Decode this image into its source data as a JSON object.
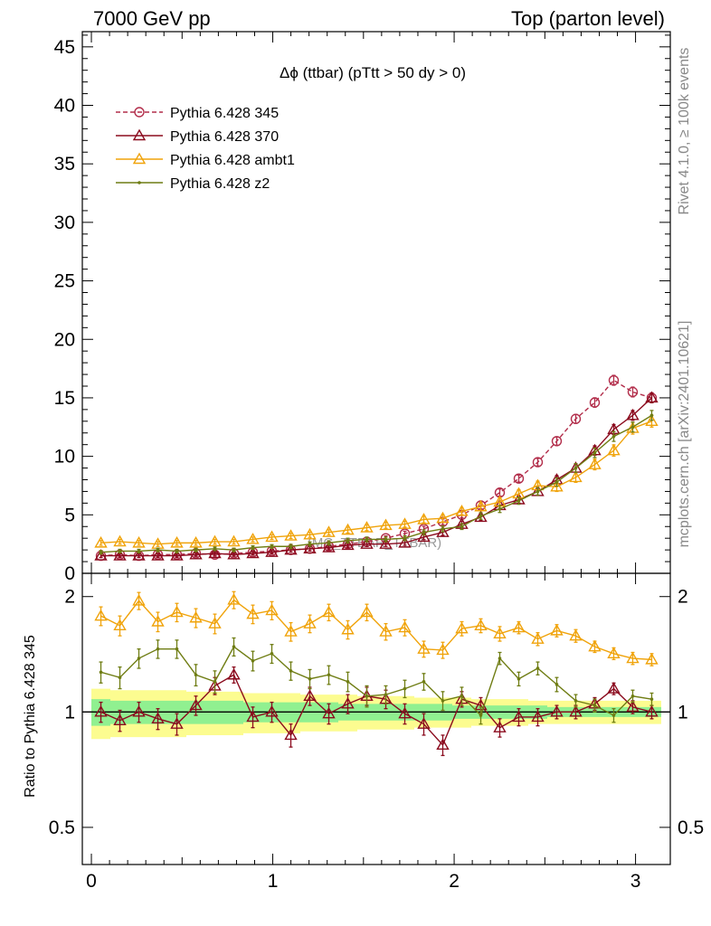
{
  "header": {
    "left": "7000 GeV pp",
    "right": "Top (parton level)"
  },
  "side": {
    "rivet": "Rivet 4.1.0, ≥ 100k events",
    "mcplots": "mcplots.cern.ch [arXiv:2401.10621]"
  },
  "watermark": "(MC_TTBAR_TTBAR)",
  "colors": {
    "p345": "#b22d4a",
    "p370": "#8b0b1e",
    "ambt1": "#f0a30a",
    "z2": "#6f7d13",
    "band_inner": "#90f090",
    "band_outer": "#fcfc90"
  },
  "chart_data": [
    {
      "type": "line",
      "title": "Δϕ (ttbar) (pTtt > 50 dy > 0)",
      "xlabel": "",
      "ylabel": "",
      "xlim": [
        -0.05,
        3.1916
      ],
      "ylim": [
        0,
        46.3
      ],
      "yticks": [
        "0",
        "5",
        "10",
        "15",
        "20",
        "25",
        "30",
        "35",
        "40",
        "45"
      ],
      "ytick_values": [
        0,
        5,
        10,
        15,
        20,
        25,
        30,
        35,
        40,
        45
      ],
      "x": [
        0.0524,
        0.1571,
        0.2618,
        0.3665,
        0.4712,
        0.576,
        0.6807,
        0.7854,
        0.8901,
        0.9948,
        1.0996,
        1.2043,
        1.309,
        1.4137,
        1.5184,
        1.6232,
        1.7279,
        1.8326,
        1.9373,
        2.042,
        2.1468,
        2.2515,
        2.3562,
        2.4609,
        2.5656,
        2.6704,
        2.7751,
        2.8798,
        2.9845,
        3.0892
      ],
      "series": [
        {
          "name": "Pythia 6.428 345",
          "key": "p345",
          "marker": "circle",
          "dashed": true,
          "values": [
            1.5,
            1.6,
            1.5,
            1.6,
            1.6,
            1.7,
            1.6,
            1.7,
            1.8,
            1.9,
            2.0,
            2.1,
            2.3,
            2.5,
            2.7,
            3.0,
            3.4,
            3.8,
            4.4,
            5.0,
            5.8,
            6.9,
            8.1,
            9.5,
            11.3,
            13.2,
            14.6,
            16.5,
            15.5,
            15.0
          ],
          "errors": [
            0.15,
            0.15,
            0.15,
            0.15,
            0.15,
            0.15,
            0.15,
            0.15,
            0.15,
            0.15,
            0.18,
            0.18,
            0.18,
            0.2,
            0.2,
            0.2,
            0.2,
            0.22,
            0.25,
            0.25,
            0.28,
            0.3,
            0.3,
            0.32,
            0.35,
            0.38,
            0.4,
            0.42,
            0.42,
            0.42
          ]
        },
        {
          "name": "Pythia 6.428 370",
          "key": "p370",
          "marker": "triangle",
          "dashed": false,
          "values": [
            1.5,
            1.5,
            1.5,
            1.5,
            1.5,
            1.6,
            1.7,
            1.6,
            1.7,
            1.8,
            2.0,
            2.1,
            2.2,
            2.4,
            2.5,
            2.5,
            2.6,
            3.1,
            3.5,
            4.2,
            4.8,
            5.8,
            6.3,
            7.0,
            8.0,
            9.0,
            10.5,
            12.3,
            13.5,
            15.0
          ],
          "errors": [
            0.15,
            0.15,
            0.15,
            0.15,
            0.15,
            0.15,
            0.15,
            0.15,
            0.15,
            0.15,
            0.18,
            0.18,
            0.18,
            0.2,
            0.2,
            0.2,
            0.2,
            0.22,
            0.25,
            0.25,
            0.28,
            0.3,
            0.3,
            0.32,
            0.35,
            0.38,
            0.4,
            0.42,
            0.42,
            0.42
          ]
        },
        {
          "name": "Pythia 6.428 ambt1",
          "key": "ambt1",
          "marker": "triangle",
          "dashed": false,
          "values": [
            2.6,
            2.7,
            2.6,
            2.5,
            2.6,
            2.6,
            2.7,
            2.7,
            2.9,
            3.1,
            3.2,
            3.3,
            3.5,
            3.7,
            3.9,
            4.1,
            4.2,
            4.6,
            4.7,
            5.3,
            5.7,
            6.1,
            6.8,
            7.5,
            7.4,
            8.2,
            9.3,
            10.5,
            12.4,
            13.0
          ],
          "errors": [
            0.2,
            0.2,
            0.2,
            0.2,
            0.2,
            0.2,
            0.2,
            0.2,
            0.2,
            0.2,
            0.22,
            0.22,
            0.22,
            0.25,
            0.25,
            0.25,
            0.25,
            0.28,
            0.3,
            0.3,
            0.32,
            0.35,
            0.35,
            0.38,
            0.4,
            0.42,
            0.45,
            0.48,
            0.5,
            0.5
          ]
        },
        {
          "name": "Pythia 6.428 z2",
          "key": "z2",
          "marker": "dot",
          "dashed": false,
          "values": [
            1.8,
            1.9,
            1.9,
            2.0,
            1.9,
            2.0,
            2.1,
            2.0,
            2.2,
            2.3,
            2.3,
            2.5,
            2.6,
            2.8,
            2.9,
            2.9,
            3.0,
            3.5,
            3.8,
            4.0,
            4.9,
            5.5,
            6.2,
            7.0,
            7.8,
            9.0,
            10.3,
            11.7,
            12.5,
            13.5
          ],
          "errors": [
            0.15,
            0.15,
            0.15,
            0.15,
            0.15,
            0.15,
            0.15,
            0.15,
            0.15,
            0.15,
            0.18,
            0.18,
            0.18,
            0.2,
            0.2,
            0.2,
            0.2,
            0.22,
            0.25,
            0.25,
            0.28,
            0.3,
            0.3,
            0.32,
            0.35,
            0.38,
            0.4,
            0.42,
            0.42,
            0.42
          ]
        }
      ],
      "legend": "top-left"
    },
    {
      "type": "line",
      "title": "",
      "xlabel": "",
      "ylabel": "Ratio to Pythia 6.428 345",
      "xlim": [
        -0.05,
        3.1916
      ],
      "ylim": [
        0.4,
        2.3
      ],
      "yscale": "log",
      "xticks": [
        "0",
        "1",
        "2",
        "3"
      ],
      "xtick_values": [
        0,
        1,
        2,
        3
      ],
      "yticks": [
        "0.5",
        "1",
        "2"
      ],
      "ytick_values": [
        0.5,
        1,
        2
      ],
      "reference": 1,
      "band_inner": [
        0.08,
        0.07,
        0.07,
        0.07,
        0.07,
        0.07,
        0.07,
        0.07,
        0.06,
        0.06,
        0.06,
        0.06,
        0.06,
        0.05,
        0.05,
        0.05,
        0.05,
        0.05,
        0.05,
        0.04,
        0.04,
        0.04,
        0.04,
        0.04,
        0.03,
        0.03,
        0.03,
        0.03,
        0.03,
        0.03
      ],
      "band_outer": [
        0.15,
        0.14,
        0.14,
        0.14,
        0.14,
        0.13,
        0.13,
        0.13,
        0.12,
        0.12,
        0.12,
        0.11,
        0.11,
        0.11,
        0.1,
        0.1,
        0.1,
        0.09,
        0.09,
        0.09,
        0.08,
        0.08,
        0.08,
        0.07,
        0.07,
        0.07,
        0.07,
        0.07,
        0.07,
        0.07
      ],
      "series": [
        {
          "name": "Pythia 6.428 370",
          "key": "p370",
          "marker": "triangle",
          "values": [
            1.0,
            0.95,
            1.0,
            0.96,
            0.93,
            1.04,
            1.17,
            1.25,
            0.97,
            1.0,
            0.87,
            1.1,
            0.99,
            1.05,
            1.1,
            1.08,
            0.99,
            0.93,
            0.82,
            1.08,
            1.04,
            0.91,
            0.97,
            0.97,
            1.0,
            1.0,
            1.05,
            1.15,
            1.03,
            1.0
          ],
          "errors": [
            0.06,
            0.06,
            0.06,
            0.06,
            0.06,
            0.06,
            0.06,
            0.06,
            0.06,
            0.06,
            0.06,
            0.06,
            0.06,
            0.06,
            0.06,
            0.06,
            0.06,
            0.06,
            0.05,
            0.05,
            0.05,
            0.05,
            0.05,
            0.05,
            0.04,
            0.04,
            0.04,
            0.04,
            0.04,
            0.04
          ]
        },
        {
          "name": "Pythia 6.428 ambt1",
          "key": "ambt1",
          "marker": "triangle",
          "values": [
            1.78,
            1.68,
            1.95,
            1.72,
            1.82,
            1.76,
            1.7,
            1.96,
            1.8,
            1.84,
            1.62,
            1.7,
            1.82,
            1.64,
            1.82,
            1.62,
            1.66,
            1.46,
            1.45,
            1.65,
            1.68,
            1.6,
            1.66,
            1.55,
            1.63,
            1.58,
            1.48,
            1.42,
            1.38,
            1.37
          ],
          "errors": [
            0.1,
            0.1,
            0.1,
            0.1,
            0.1,
            0.1,
            0.1,
            0.1,
            0.1,
            0.1,
            0.09,
            0.09,
            0.09,
            0.09,
            0.09,
            0.08,
            0.08,
            0.07,
            0.07,
            0.07,
            0.07,
            0.07,
            0.06,
            0.06,
            0.06,
            0.06,
            0.05,
            0.05,
            0.05,
            0.05
          ]
        },
        {
          "name": "Pythia 6.428 z2",
          "key": "z2",
          "marker": "dot",
          "values": [
            1.27,
            1.23,
            1.38,
            1.46,
            1.46,
            1.25,
            1.2,
            1.48,
            1.36,
            1.42,
            1.28,
            1.22,
            1.25,
            1.2,
            1.1,
            1.11,
            1.15,
            1.2,
            1.07,
            1.1,
            0.98,
            1.38,
            1.22,
            1.3,
            1.18,
            1.07,
            1.04,
            0.98,
            1.1,
            1.08
          ],
          "errors": [
            0.08,
            0.08,
            0.08,
            0.08,
            0.08,
            0.08,
            0.08,
            0.08,
            0.08,
            0.08,
            0.07,
            0.07,
            0.07,
            0.07,
            0.07,
            0.06,
            0.06,
            0.06,
            0.06,
            0.06,
            0.05,
            0.05,
            0.05,
            0.05,
            0.05,
            0.04,
            0.04,
            0.04,
            0.04,
            0.04
          ]
        }
      ]
    }
  ]
}
